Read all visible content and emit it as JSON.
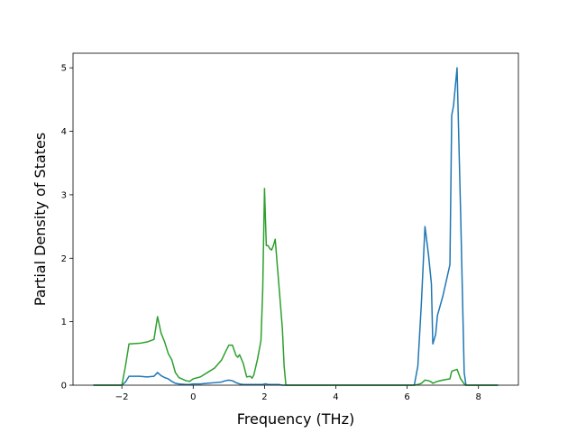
{
  "chart_data": {
    "type": "line",
    "xlabel": "Frequency (THz)",
    "ylabel": "Partial Density of States",
    "x": [
      -2.8,
      -2.0,
      -1.9,
      -1.8,
      -1.5,
      -1.3,
      -1.1,
      -1.0,
      -0.9,
      -0.8,
      -0.7,
      -0.6,
      -0.5,
      -0.4,
      -0.2,
      -0.1,
      0,
      0.2,
      0.4,
      0.6,
      0.8,
      0.9,
      1.0,
      1.1,
      1.2,
      1.25,
      1.3,
      1.4,
      1.5,
      1.6,
      1.65,
      1.7,
      1.8,
      1.9,
      1.95,
      2.0,
      2.05,
      2.1,
      2.15,
      2.2,
      2.25,
      2.3,
      2.4,
      2.5,
      2.55,
      2.6,
      6.2,
      6.3,
      6.4,
      6.5,
      6.6,
      6.68,
      6.72,
      6.8,
      6.85,
      7.0,
      7.1,
      7.2,
      7.25,
      7.3,
      7.4,
      7.5,
      7.6,
      7.65,
      8.55
    ],
    "series": [
      {
        "color": "#1f77b4",
        "values": [
          0,
          0,
          0.05,
          0.14,
          0.14,
          0.13,
          0.14,
          0.2,
          0.15,
          0.12,
          0.1,
          0.06,
          0.03,
          0.02,
          0.01,
          0.01,
          0.02,
          0.02,
          0.03,
          0.04,
          0.05,
          0.07,
          0.08,
          0.07,
          0.04,
          0.03,
          0.02,
          0.01,
          0.01,
          0.01,
          0.01,
          0.01,
          0.01,
          0.01,
          0.01,
          0.02,
          0.02,
          0.01,
          0.01,
          0.01,
          0.01,
          0.01,
          0.01,
          0,
          0,
          0,
          0,
          0.3,
          1.3,
          2.5,
          2.05,
          1.6,
          0.65,
          0.8,
          1.1,
          1.4,
          1.65,
          1.9,
          4.25,
          4.4,
          5.0,
          2.7,
          0.2,
          0,
          0
        ]
      },
      {
        "color": "#2ca02c",
        "values": [
          0,
          0,
          0.3,
          0.65,
          0.66,
          0.68,
          0.72,
          1.08,
          0.82,
          0.68,
          0.5,
          0.4,
          0.2,
          0.12,
          0.07,
          0.06,
          0.1,
          0.13,
          0.2,
          0.27,
          0.4,
          0.52,
          0.63,
          0.63,
          0.47,
          0.44,
          0.48,
          0.35,
          0.13,
          0.14,
          0.11,
          0.16,
          0.4,
          0.7,
          1.5,
          3.1,
          2.2,
          2.2,
          2.15,
          2.13,
          2.2,
          2.3,
          1.6,
          0.9,
          0.3,
          0,
          0,
          0.01,
          0.03,
          0.08,
          0.07,
          0.05,
          0.03,
          0.05,
          0.06,
          0.08,
          0.09,
          0.1,
          0.22,
          0.23,
          0.25,
          0.1,
          0.02,
          0,
          0
        ]
      }
    ],
    "xlim": [
      -3.37,
      9.12
    ],
    "ylim": [
      0,
      5.23
    ],
    "xticks": [
      {
        "value": -2,
        "label": "−2"
      },
      0,
      2,
      4,
      6,
      8
    ],
    "yticks": [
      0,
      1,
      2,
      3,
      4,
      5
    ]
  }
}
